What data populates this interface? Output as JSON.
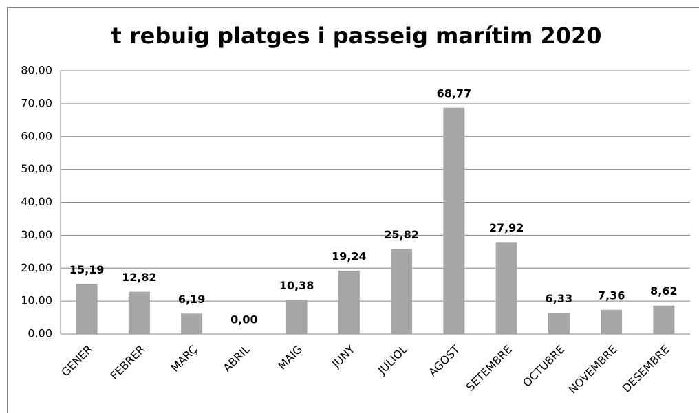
{
  "chart_data": {
    "type": "bar",
    "title": "t rebuig platges i passeig marítim 2020",
    "categories": [
      "GENER",
      "FEBRER",
      "MARÇ",
      "ABRIL",
      "MAIG",
      "JUNY",
      "JULIOL",
      "AGOST",
      "SETEMBRE",
      "OCTUBRE",
      "NOVEMBRE",
      "DESEMBRE"
    ],
    "values": [
      15.19,
      12.82,
      6.19,
      0,
      10.38,
      19.24,
      25.82,
      68.77,
      27.92,
      6.33,
      7.36,
      8.62
    ],
    "value_labels": [
      "15,19",
      "12,82",
      "6,19",
      "0,00",
      "10,38",
      "19,24",
      "25,82",
      "68,77",
      "27,92",
      "6,33",
      "7,36",
      "8,62"
    ],
    "color": "#a6a6a6",
    "ylim": [
      0,
      80
    ],
    "yticks": [
      {
        "value": 0,
        "label": "0,00"
      },
      {
        "value": 10,
        "label": "10,00"
      },
      {
        "value": 20,
        "label": "20,00"
      },
      {
        "value": 30,
        "label": "30,00"
      },
      {
        "value": 40,
        "label": "40,00"
      },
      {
        "value": 50,
        "label": "50,00"
      },
      {
        "value": 60,
        "label": "60,00"
      },
      {
        "value": 70,
        "label": "70,00"
      },
      {
        "value": 80,
        "label": "80,00"
      }
    ],
    "grid": true
  }
}
